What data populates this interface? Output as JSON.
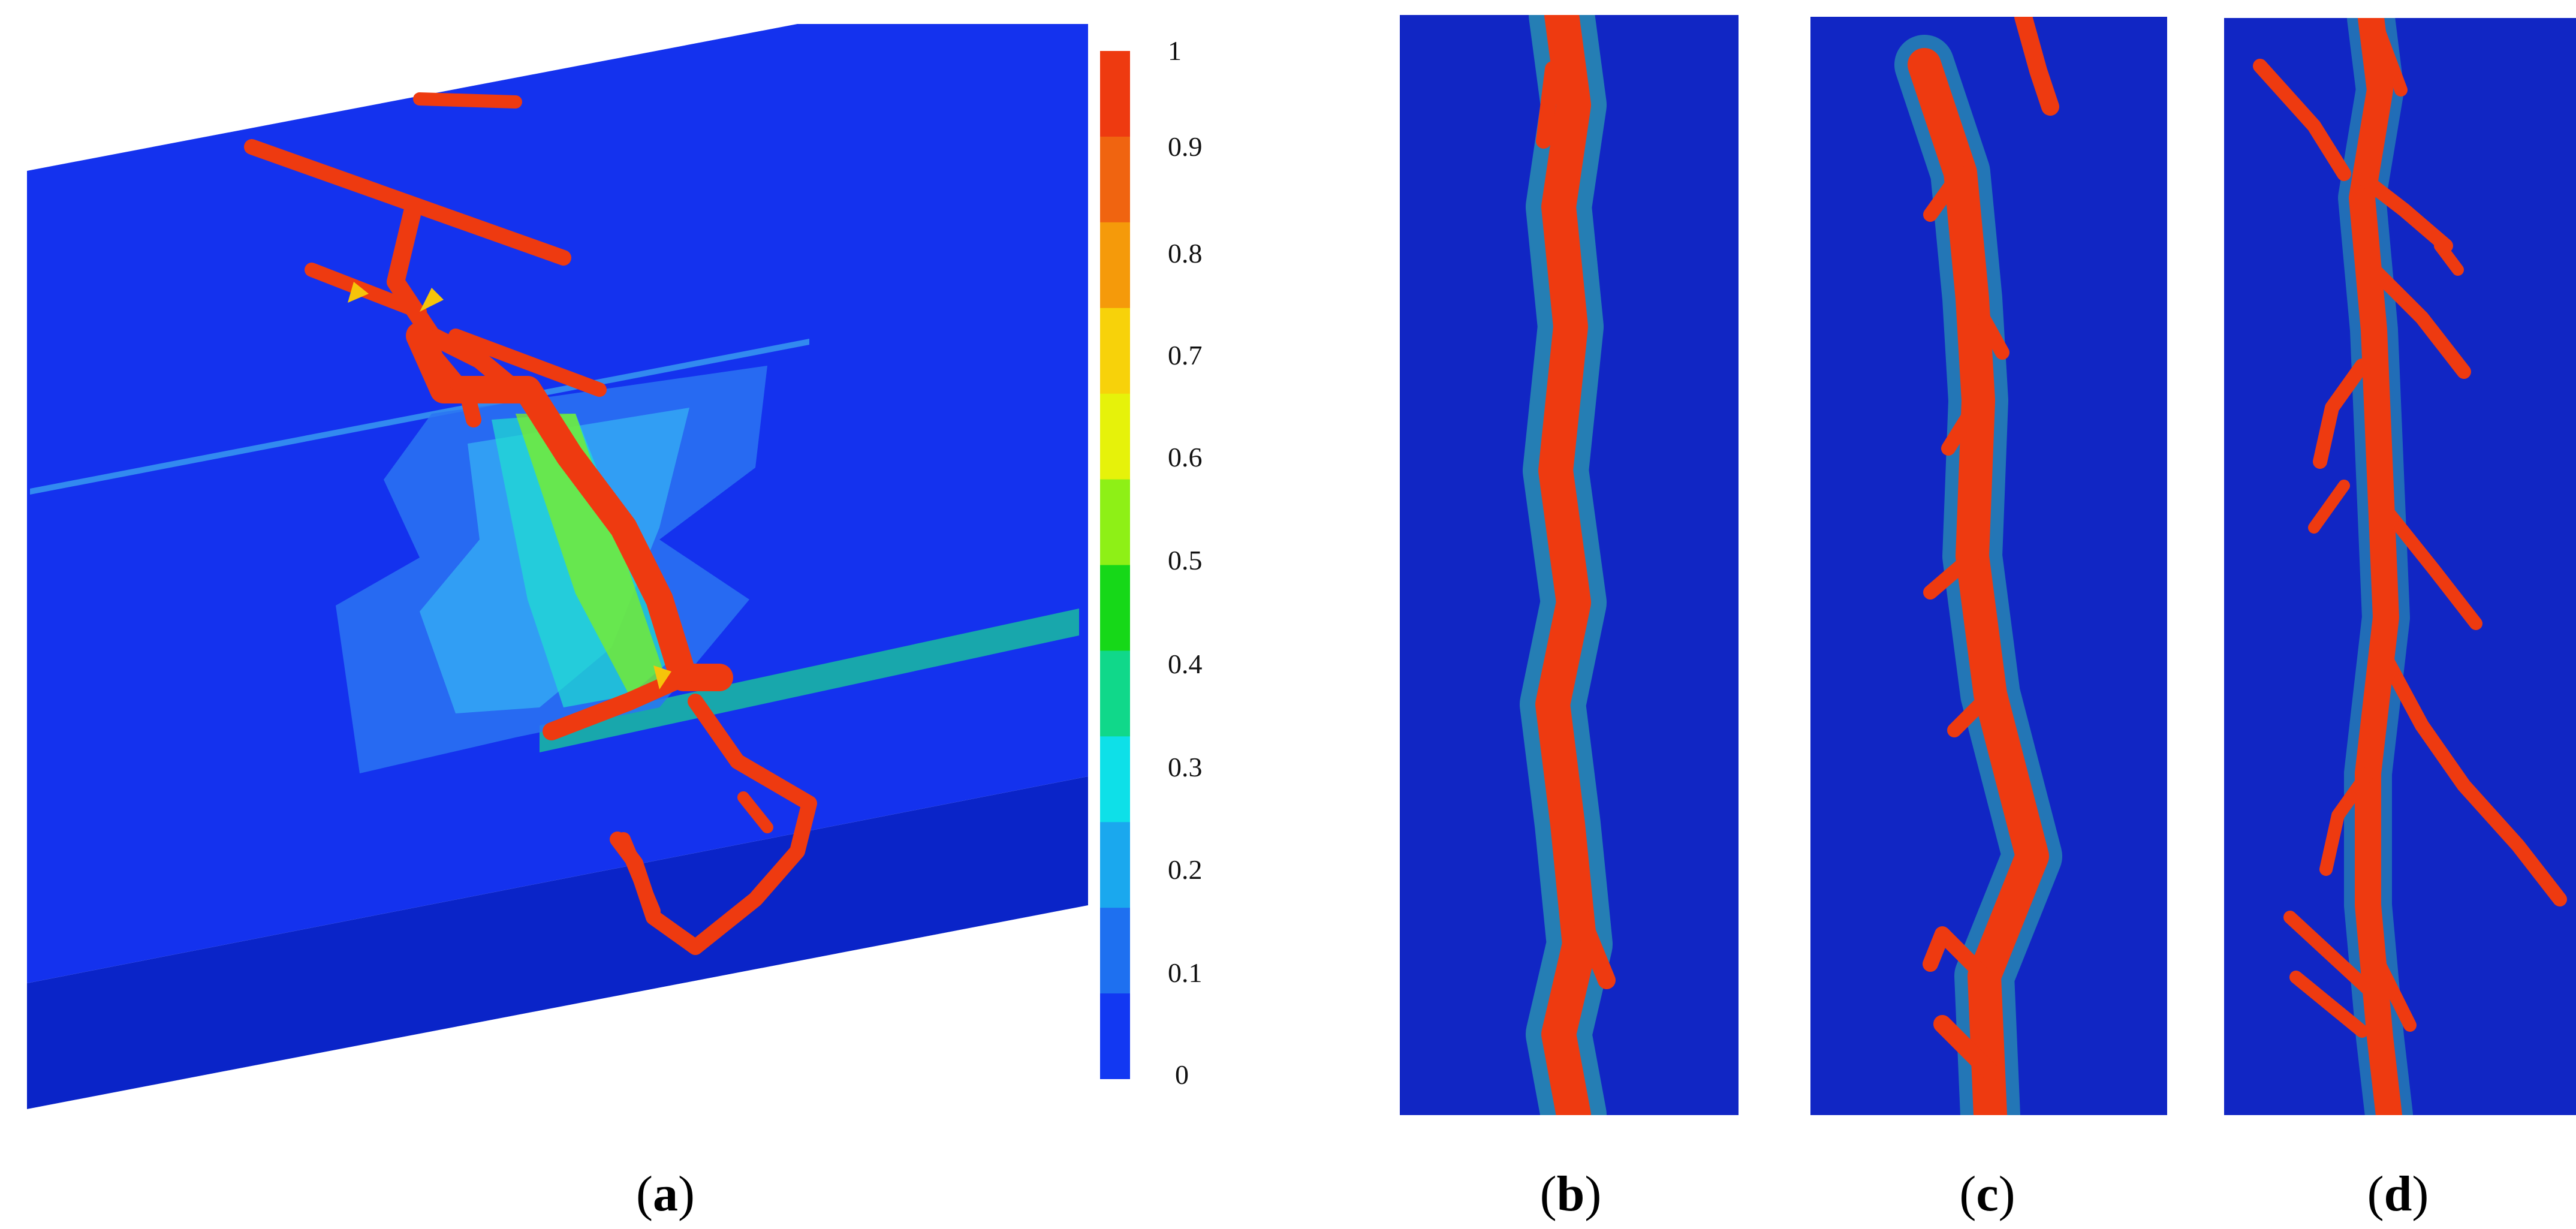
{
  "colorbar": {
    "ticks": [
      "1",
      "0.9",
      "0.8",
      "0.7",
      "0.6",
      "0.5",
      "0.4",
      "0.3",
      "0.2",
      "0.1",
      "0"
    ],
    "colors": [
      "#ee3a10",
      "#f06410",
      "#f59a0a",
      "#f7d20a",
      "#e6f20a",
      "#8ef016",
      "#16d818",
      "#10d88a",
      "#0ee0e8",
      "#1aa8ee",
      "#1e70f0",
      "#1238f2"
    ]
  },
  "panels": [
    {
      "label": "a"
    },
    {
      "label": "b"
    },
    {
      "label": "c"
    },
    {
      "label": "d"
    }
  ]
}
